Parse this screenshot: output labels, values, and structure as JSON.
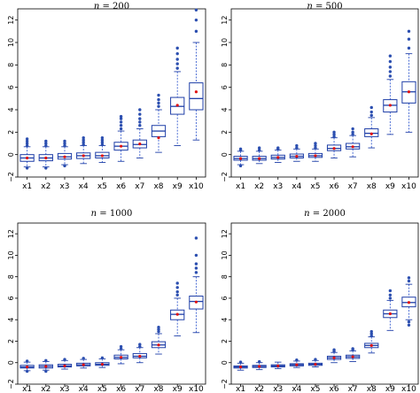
{
  "colors": {
    "box": "#1f3fa8",
    "whisker": "#3a5fd0",
    "outlier": "#2c4fb0",
    "mean": "#e01010",
    "axis": "#000000"
  },
  "chart_data": [
    {
      "type": "box",
      "title_var": "n",
      "title_eq": " = ",
      "title_val": "200",
      "categories": [
        "x1",
        "x2",
        "x3",
        "x4",
        "x5",
        "x6",
        "x7",
        "x8",
        "x9",
        "x10"
      ],
      "ylim": [
        -2,
        13
      ],
      "yticks": [
        "-2",
        "0",
        "2",
        "4",
        "6",
        "8",
        "10",
        "12"
      ],
      "boxes": [
        {
          "min": -1.1,
          "q1": -0.6,
          "med": -0.3,
          "q3": 0.0,
          "max": 0.7,
          "mean": -0.3,
          "outliers": [
            0.8,
            1.0,
            1.2,
            1.4,
            -1.2
          ]
        },
        {
          "min": -1.1,
          "q1": -0.55,
          "med": -0.3,
          "q3": 0.0,
          "max": 0.7,
          "mean": -0.3,
          "outliers": [
            0.8,
            1.0,
            1.2,
            -1.2
          ]
        },
        {
          "min": -0.9,
          "q1": -0.4,
          "med": -0.2,
          "q3": 0.1,
          "max": 0.7,
          "mean": -0.2,
          "outliers": [
            0.8,
            1.0,
            1.2,
            -1.0
          ]
        },
        {
          "min": -0.8,
          "q1": -0.35,
          "med": -0.1,
          "q3": 0.15,
          "max": 0.8,
          "mean": -0.1,
          "outliers": [
            0.9,
            1.1,
            1.3,
            1.5
          ]
        },
        {
          "min": -0.7,
          "q1": -0.3,
          "med": -0.1,
          "q3": 0.2,
          "max": 0.8,
          "mean": -0.1,
          "outliers": [
            0.9,
            1.1,
            1.3,
            1.5
          ]
        },
        {
          "min": -0.6,
          "q1": 0.4,
          "med": 0.75,
          "q3": 1.1,
          "max": 2.1,
          "mean": 0.75,
          "outliers": [
            2.3,
            2.6,
            2.9,
            3.2,
            3.4
          ]
        },
        {
          "min": -0.3,
          "q1": 0.6,
          "med": 0.9,
          "q3": 1.3,
          "max": 2.3,
          "mean": 0.95,
          "outliers": [
            2.6,
            2.9,
            3.2,
            3.6,
            4.0
          ]
        },
        {
          "min": 0.2,
          "q1": 1.6,
          "med": 2.1,
          "q3": 2.6,
          "max": 4.0,
          "mean": 1.5,
          "outliers": [
            4.3,
            4.6,
            4.9,
            5.3
          ]
        },
        {
          "min": 0.8,
          "q1": 3.6,
          "med": 4.3,
          "q3": 5.1,
          "max": 7.4,
          "mean": 4.4,
          "outliers": [
            7.7,
            8.1,
            8.5,
            9.0,
            9.5
          ]
        },
        {
          "min": 1.3,
          "q1": 4.0,
          "med": 5.0,
          "q3": 6.4,
          "max": 10.0,
          "mean": 5.6,
          "outliers": [
            11.0,
            12.0,
            12.9
          ]
        }
      ]
    },
    {
      "type": "box",
      "title_var": "n",
      "title_eq": " = ",
      "title_val": "500",
      "categories": [
        "x1",
        "x2",
        "x3",
        "x4",
        "x5",
        "x6",
        "x7",
        "x8",
        "x9",
        "x10"
      ],
      "ylim": [
        -2,
        13
      ],
      "yticks": [
        "-2",
        "0",
        "2",
        "4",
        "6",
        "8",
        "10",
        "12"
      ],
      "boxes": [
        {
          "min": -0.9,
          "q1": -0.5,
          "med": -0.35,
          "q3": -0.15,
          "max": 0.3,
          "mean": -0.35,
          "outliers": [
            0.4,
            0.5,
            -1.0
          ]
        },
        {
          "min": -0.8,
          "q1": -0.5,
          "med": -0.35,
          "q3": -0.15,
          "max": 0.3,
          "mean": -0.35,
          "outliers": [
            0.4,
            0.6
          ]
        },
        {
          "min": -0.7,
          "q1": -0.4,
          "med": -0.25,
          "q3": -0.05,
          "max": 0.4,
          "mean": -0.25,
          "outliers": [
            0.5,
            0.6
          ]
        },
        {
          "min": -0.6,
          "q1": -0.3,
          "med": -0.15,
          "q3": 0.05,
          "max": 0.5,
          "mean": -0.15,
          "outliers": [
            0.6,
            0.8
          ]
        },
        {
          "min": -0.6,
          "q1": -0.25,
          "med": -0.1,
          "q3": 0.1,
          "max": 0.5,
          "mean": -0.1,
          "outliers": [
            0.6,
            0.8,
            1.0
          ]
        },
        {
          "min": -0.3,
          "q1": 0.35,
          "med": 0.55,
          "q3": 0.85,
          "max": 1.5,
          "mean": 0.55,
          "outliers": [
            1.6,
            1.8,
            2.0
          ]
        },
        {
          "min": -0.2,
          "q1": 0.5,
          "med": 0.7,
          "q3": 1.0,
          "max": 1.7,
          "mean": 0.7,
          "outliers": [
            1.8,
            2.0,
            2.3
          ]
        },
        {
          "min": 0.6,
          "q1": 1.6,
          "med": 1.9,
          "q3": 2.3,
          "max": 3.3,
          "mean": 1.85,
          "outliers": [
            3.5,
            3.8,
            4.2
          ]
        },
        {
          "min": 1.8,
          "q1": 3.8,
          "med": 4.4,
          "q3": 4.9,
          "max": 6.7,
          "mean": 4.4,
          "outliers": [
            7.0,
            7.4,
            7.8,
            8.3,
            8.8
          ]
        },
        {
          "min": 2.0,
          "q1": 4.6,
          "med": 5.6,
          "q3": 6.5,
          "max": 9.0,
          "mean": 5.6,
          "outliers": [
            9.5,
            10.3,
            11.0
          ]
        }
      ]
    },
    {
      "type": "box",
      "title_var": "n",
      "title_eq": " = ",
      "title_val": "1000",
      "categories": [
        "x1",
        "x2",
        "x3",
        "x4",
        "x5",
        "x6",
        "x7",
        "x8",
        "x9",
        "x10"
      ],
      "ylim": [
        -2,
        13
      ],
      "yticks": [
        "-2",
        "0",
        "2",
        "4",
        "6",
        "8",
        "10",
        "12"
      ],
      "boxes": [
        {
          "min": -0.75,
          "q1": -0.5,
          "med": -0.4,
          "q3": -0.25,
          "max": 0.05,
          "mean": -0.4,
          "outliers": [
            0.15,
            -0.8
          ]
        },
        {
          "min": -0.7,
          "q1": -0.5,
          "med": -0.35,
          "q3": -0.2,
          "max": 0.1,
          "mean": -0.35,
          "outliers": [
            0.2,
            -0.8
          ]
        },
        {
          "min": -0.6,
          "q1": -0.4,
          "med": -0.3,
          "q3": -0.15,
          "max": 0.2,
          "mean": -0.3,
          "outliers": [
            0.3
          ]
        },
        {
          "min": -0.5,
          "q1": -0.3,
          "med": -0.2,
          "q3": -0.05,
          "max": 0.3,
          "mean": -0.2,
          "outliers": [
            0.4
          ]
        },
        {
          "min": -0.45,
          "q1": -0.25,
          "med": -0.15,
          "q3": 0.0,
          "max": 0.35,
          "mean": -0.15,
          "outliers": [
            0.45
          ]
        },
        {
          "min": -0.1,
          "q1": 0.35,
          "med": 0.5,
          "q3": 0.7,
          "max": 1.2,
          "mean": 0.5,
          "outliers": [
            1.3,
            1.5
          ]
        },
        {
          "min": 0.0,
          "q1": 0.45,
          "med": 0.6,
          "q3": 0.85,
          "max": 1.4,
          "mean": 0.6,
          "outliers": [
            1.5,
            1.7
          ]
        },
        {
          "min": 0.8,
          "q1": 1.4,
          "med": 1.65,
          "q3": 1.95,
          "max": 2.7,
          "mean": 1.65,
          "outliers": [
            2.9,
            3.1,
            3.3
          ]
        },
        {
          "min": 2.5,
          "q1": 4.0,
          "med": 4.5,
          "q3": 4.9,
          "max": 6.0,
          "mean": 4.5,
          "outliers": [
            6.3,
            6.6,
            7.0,
            7.4
          ]
        },
        {
          "min": 2.8,
          "q1": 5.0,
          "med": 5.7,
          "q3": 6.2,
          "max": 8.0,
          "mean": 5.65,
          "outliers": [
            8.4,
            8.8,
            9.2,
            10.0,
            11.6
          ]
        }
      ]
    },
    {
      "type": "box",
      "title_var": "n",
      "title_eq": " = ",
      "title_val": "2000",
      "categories": [
        "x1",
        "x2",
        "x3",
        "x4",
        "x5",
        "x6",
        "x7",
        "x8",
        "x9",
        "x10"
      ],
      "ylim": [
        -2,
        13
      ],
      "yticks": [
        "-2",
        "0",
        "2",
        "4",
        "6",
        "8",
        "10",
        "12"
      ],
      "boxes": [
        {
          "min": -0.7,
          "q1": -0.5,
          "med": -0.4,
          "q3": -0.3,
          "max": -0.05,
          "mean": -0.4,
          "outliers": [
            0.05
          ]
        },
        {
          "min": -0.65,
          "q1": -0.45,
          "med": -0.35,
          "q3": -0.25,
          "max": 0.0,
          "mean": -0.35,
          "outliers": [
            0.1
          ]
        },
        {
          "min": -0.55,
          "q1": -0.4,
          "med": -0.3,
          "q3": -0.2,
          "max": 0.05,
          "mean": -0.3,
          "outliers": []
        },
        {
          "min": -0.45,
          "q1": -0.3,
          "med": -0.2,
          "q3": -0.1,
          "max": 0.15,
          "mean": -0.2,
          "outliers": [
            0.25
          ]
        },
        {
          "min": -0.4,
          "q1": -0.25,
          "med": -0.15,
          "q3": -0.05,
          "max": 0.2,
          "mean": -0.15,
          "outliers": [
            0.3
          ]
        },
        {
          "min": 0.0,
          "q1": 0.3,
          "med": 0.45,
          "q3": 0.6,
          "max": 0.95,
          "mean": 0.45,
          "outliers": [
            1.05,
            1.2
          ]
        },
        {
          "min": 0.1,
          "q1": 0.4,
          "med": 0.55,
          "q3": 0.7,
          "max": 1.1,
          "mean": 0.55,
          "outliers": [
            1.2,
            1.3
          ]
        },
        {
          "min": 0.9,
          "q1": 1.4,
          "med": 1.6,
          "q3": 1.8,
          "max": 2.4,
          "mean": 1.6,
          "outliers": [
            2.5,
            2.7,
            2.9
          ]
        },
        {
          "min": 3.0,
          "q1": 4.2,
          "med": 4.55,
          "q3": 4.9,
          "max": 5.8,
          "mean": 4.55,
          "outliers": [
            6.0,
            6.3,
            6.7
          ]
        },
        {
          "min": 4.0,
          "q1": 5.2,
          "med": 5.6,
          "q3": 6.1,
          "max": 7.3,
          "mean": 5.6,
          "outliers": [
            7.6,
            7.9,
            3.8,
            3.5
          ]
        }
      ]
    }
  ]
}
